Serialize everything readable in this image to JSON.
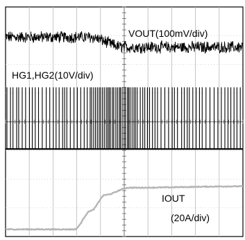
{
  "chart_data": {
    "type": "line",
    "title": "",
    "grid": true,
    "grid_divisions": {
      "x": 10,
      "y": 8
    },
    "traces": [
      {
        "name": "VOUT(100mV/div)",
        "coupling_note": "ripple-noisy, steps down by about 0.35 div between time 3.5 and 5 div",
        "t_div": [
          0,
          3.5,
          5,
          10
        ],
        "level_div": [
          6.95,
          6.95,
          6.6,
          6.6
        ],
        "noise_div": 0.18
      },
      {
        "name": "HG1,HG2(10V/div)",
        "coupling_note": "switching gate-drive pulses",
        "low_level_div": 3.05,
        "high_level_div": 5.2,
        "dense_burst_region_div": [
          3.5,
          5.5
        ]
      },
      {
        "name": "IOUT",
        "scale_note": "(20A/div)",
        "t_div": [
          0,
          2.9,
          3.6,
          4.2,
          5.2,
          10
        ],
        "level_div": [
          0.25,
          0.25,
          0.9,
          1.45,
          1.7,
          1.75
        ],
        "color": "#b5b5b5"
      }
    ],
    "labels": {
      "vout": "VOUT(100mV/div)",
      "hg": "HG1,HG2(10V/div)",
      "iout_line1": "IOUT",
      "iout_line2": "(20A/div)"
    }
  }
}
